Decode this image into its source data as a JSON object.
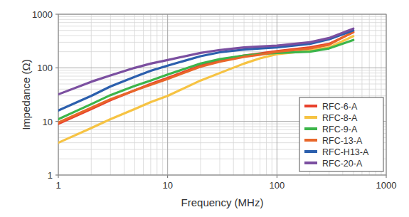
{
  "chart_data": {
    "type": "line",
    "x_label": "Frequency (MHz)",
    "y_label": "Impedance (Ω)",
    "log": true,
    "grid": true,
    "legend": "lower right",
    "xlim": [
      1,
      1000
    ],
    "ylim": [
      1,
      1000
    ],
    "xticks": [
      1,
      10,
      100,
      1000
    ],
    "yticks": [
      1,
      10,
      100,
      1000
    ],
    "x": [
      1,
      2,
      3,
      5,
      7,
      10,
      20,
      30,
      50,
      70,
      100,
      200,
      300,
      500
    ],
    "series": [
      {
        "name": "RFC-6-A",
        "color": "#e8412c",
        "values": [
          9,
          17,
          25,
          38,
          50,
          65,
          110,
          140,
          170,
          185,
          205,
          240,
          280,
          460
        ]
      },
      {
        "name": "RFC-8-A",
        "color": "#f6c343",
        "values": [
          4,
          7.5,
          11,
          17,
          23,
          30,
          58,
          80,
          120,
          150,
          180,
          210,
          240,
          390
        ]
      },
      {
        "name": "RFC-9-A",
        "color": "#3cb54a",
        "values": [
          11,
          21,
          31,
          46,
          58,
          75,
          120,
          145,
          170,
          180,
          190,
          200,
          230,
          330
        ]
      },
      {
        "name": "RFC-13-A",
        "color": "#e8672a",
        "values": [
          9.5,
          18,
          26,
          38,
          48,
          62,
          105,
          130,
          160,
          175,
          200,
          230,
          270,
          470
        ]
      },
      {
        "name": "RFC-H13-A",
        "color": "#2b5fad",
        "values": [
          16,
          30,
          45,
          68,
          88,
          110,
          165,
          195,
          220,
          230,
          240,
          280,
          340,
          500
        ]
      },
      {
        "name": "RFC-20-A",
        "color": "#7b4fa0",
        "values": [
          32,
          55,
          72,
          100,
          120,
          140,
          190,
          215,
          240,
          250,
          260,
          300,
          360,
          540
        ]
      }
    ]
  }
}
